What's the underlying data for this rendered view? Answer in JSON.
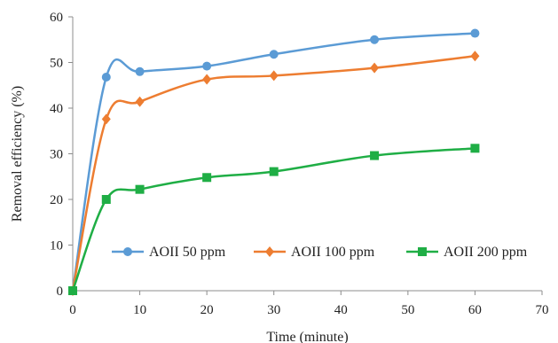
{
  "chart_data": {
    "type": "line",
    "xlabel": "Time (minute)",
    "ylabel": "Removal efficiency (%)",
    "xlim": [
      0,
      70
    ],
    "ylim": [
      0,
      60
    ],
    "xticks": [
      0,
      10,
      20,
      30,
      40,
      50,
      60,
      70
    ],
    "xtick_labels": [
      "0",
      "10",
      "20",
      "30",
      "40",
      "50",
      "60",
      "70"
    ],
    "yticks": [
      0,
      10,
      20,
      30,
      40,
      50,
      60
    ],
    "ytick_labels": [
      "0",
      "10",
      "20",
      "30",
      "40",
      "50",
      "60"
    ],
    "grid": false,
    "legend_position": "bottom-inside",
    "series": [
      {
        "name": "AOII 50 ppm",
        "color": "#5b9bd5",
        "marker": "circle",
        "x": [
          0,
          5,
          10,
          20,
          30,
          45,
          60
        ],
        "y": [
          0,
          46.8,
          48,
          49.2,
          51.8,
          55,
          56.4
        ]
      },
      {
        "name": "AOII 100 ppm",
        "color": "#ed7d31",
        "marker": "diamond",
        "x": [
          0,
          5,
          10,
          20,
          30,
          45,
          60
        ],
        "y": [
          0,
          37.6,
          41.4,
          46.3,
          47.1,
          48.8,
          51.4
        ]
      },
      {
        "name": "AOII 200 ppm",
        "color": "#1fae45",
        "marker": "square",
        "x": [
          0,
          5,
          10,
          20,
          30,
          45,
          60
        ],
        "y": [
          0,
          20,
          22.2,
          24.8,
          26.1,
          29.6,
          31.2
        ]
      }
    ]
  }
}
